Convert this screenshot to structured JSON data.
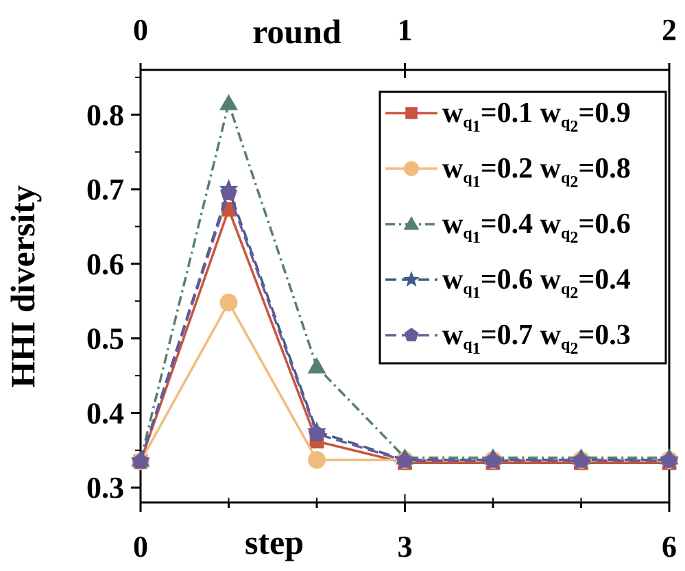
{
  "chart_data": {
    "type": "line",
    "xlabel": "step",
    "ylabel": "HHI diversity",
    "x2label": "round",
    "x": [
      0,
      1,
      2,
      3,
      4,
      5,
      6
    ],
    "xlim": [
      0,
      6
    ],
    "xticks": [
      "0",
      "3",
      "6"
    ],
    "x2ticks": [
      "0",
      "1",
      "2"
    ],
    "ylim": [
      0.28,
      0.86
    ],
    "yticks": [
      "0.3",
      "0.4",
      "0.5",
      "0.6",
      "0.7",
      "0.8"
    ],
    "grid": false,
    "legend_position": "top-right",
    "series": [
      {
        "w1": "0.1",
        "w2": "0.9",
        "color": "#c8553d",
        "marker": "square",
        "dash": "solid",
        "values": [
          0.335,
          0.673,
          0.362,
          0.333,
          0.333,
          0.333,
          0.333
        ]
      },
      {
        "w1": "0.2",
        "w2": "0.8",
        "color": "#f0bc7e",
        "marker": "circle",
        "dash": "solid",
        "values": [
          0.335,
          0.548,
          0.337,
          0.337,
          0.337,
          0.337,
          0.337
        ]
      },
      {
        "w1": "0.4",
        "w2": "0.6",
        "color": "#55806f",
        "marker": "triangle",
        "dash": "dashdot",
        "values": [
          0.337,
          0.815,
          0.462,
          0.34,
          0.34,
          0.34,
          0.34
        ]
      },
      {
        "w1": "0.6",
        "w2": "0.4",
        "color": "#3f5d86",
        "marker": "star",
        "dash": "dashed",
        "values": [
          0.336,
          0.7,
          0.375,
          0.337,
          0.337,
          0.337,
          0.337
        ]
      },
      {
        "w1": "0.7",
        "w2": "0.3",
        "color": "#6a5a9c",
        "marker": "pentagon",
        "dash": "dashed",
        "values": [
          0.335,
          0.695,
          0.372,
          0.336,
          0.336,
          0.336,
          0.336
        ]
      }
    ]
  }
}
